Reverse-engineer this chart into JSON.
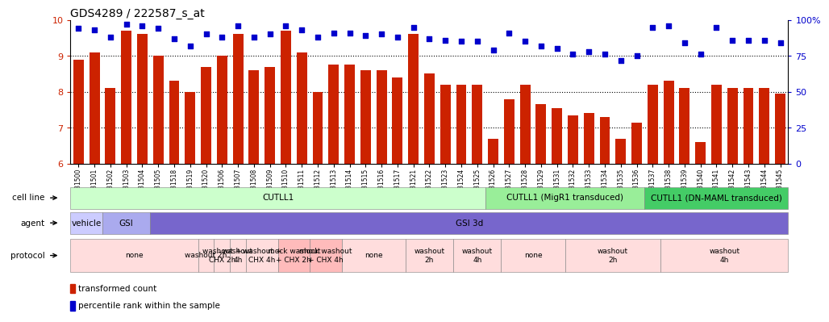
{
  "title": "GDS4289 / 222587_s_at",
  "samples": [
    "GSM731500",
    "GSM731501",
    "GSM731502",
    "GSM731503",
    "GSM731504",
    "GSM731505",
    "GSM731518",
    "GSM731519",
    "GSM731520",
    "GSM731506",
    "GSM731507",
    "GSM731508",
    "GSM731509",
    "GSM731510",
    "GSM731511",
    "GSM731512",
    "GSM731513",
    "GSM731514",
    "GSM731515",
    "GSM731516",
    "GSM731517",
    "GSM731521",
    "GSM731522",
    "GSM731523",
    "GSM731524",
    "GSM731525",
    "GSM731526",
    "GSM731527",
    "GSM731528",
    "GSM731529",
    "GSM731531",
    "GSM731532",
    "GSM731533",
    "GSM731534",
    "GSM731535",
    "GSM731536",
    "GSM731537",
    "GSM731538",
    "GSM731539",
    "GSM731540",
    "GSM731541",
    "GSM731542",
    "GSM731543",
    "GSM731544",
    "GSM731545"
  ],
  "bar_values": [
    8.9,
    9.1,
    8.1,
    9.7,
    9.6,
    9.0,
    8.3,
    8.0,
    8.7,
    9.0,
    9.6,
    8.6,
    8.7,
    9.7,
    9.1,
    8.0,
    8.75,
    8.75,
    8.6,
    8.6,
    8.4,
    9.6,
    8.5,
    8.2,
    8.2,
    8.2,
    6.7,
    7.8,
    8.2,
    7.65,
    7.55,
    7.35,
    7.4,
    7.3,
    6.7,
    7.15,
    8.2,
    8.3,
    8.1,
    6.6,
    8.2,
    8.1,
    8.1,
    8.1,
    7.95
  ],
  "dot_values": [
    94,
    93,
    88,
    97,
    96,
    94,
    87,
    82,
    90,
    88,
    96,
    88,
    90,
    96,
    93,
    88,
    91,
    91,
    89,
    90,
    88,
    95,
    87,
    86,
    85,
    85,
    79,
    91,
    85,
    82,
    80,
    76,
    78,
    76,
    72,
    75,
    95,
    96,
    84,
    76,
    95,
    86,
    86,
    86,
    84
  ],
  "bar_color": "#cc2200",
  "dot_color": "#0000cc",
  "ylim_left": [
    6,
    10
  ],
  "ylim_right": [
    0,
    100
  ],
  "yticks_left": [
    6,
    7,
    8,
    9,
    10
  ],
  "yticks_right": [
    0,
    25,
    50,
    75,
    100
  ],
  "ylabel_left_color": "#cc2200",
  "ylabel_right_color": "#0000cc",
  "cell_line_groups": [
    {
      "label": "CUTLL1",
      "start": 0,
      "end": 26,
      "color": "#ccffcc"
    },
    {
      "label": "CUTLL1 (MigR1 transduced)",
      "start": 26,
      "end": 36,
      "color": "#99ee99"
    },
    {
      "label": "CUTLL1 (DN-MAML transduced)",
      "start": 36,
      "end": 45,
      "color": "#44cc66"
    }
  ],
  "agent_groups": [
    {
      "label": "vehicle",
      "start": 0,
      "end": 2,
      "color": "#ccccff"
    },
    {
      "label": "GSI",
      "start": 2,
      "end": 5,
      "color": "#aaaaee"
    },
    {
      "label": "GSI 3d",
      "start": 5,
      "end": 45,
      "color": "#7766cc"
    }
  ],
  "protocol_groups": [
    {
      "label": "none",
      "start": 0,
      "end": 8,
      "color": "#ffdddd"
    },
    {
      "label": "washout 2h",
      "start": 8,
      "end": 9,
      "color": "#ffdddd"
    },
    {
      "label": "washout +\nCHX 2h",
      "start": 9,
      "end": 10,
      "color": "#ffdddd"
    },
    {
      "label": "washout\n4h",
      "start": 10,
      "end": 11,
      "color": "#ffdddd"
    },
    {
      "label": "washout +\nCHX 4h",
      "start": 11,
      "end": 13,
      "color": "#ffdddd"
    },
    {
      "label": "mock washout\n+ CHX 2h",
      "start": 13,
      "end": 15,
      "color": "#ffbbbb"
    },
    {
      "label": "mock washout\n+ CHX 4h",
      "start": 15,
      "end": 17,
      "color": "#ffbbbb"
    },
    {
      "label": "none",
      "start": 17,
      "end": 21,
      "color": "#ffdddd"
    },
    {
      "label": "washout\n2h",
      "start": 21,
      "end": 24,
      "color": "#ffdddd"
    },
    {
      "label": "washout\n4h",
      "start": 24,
      "end": 27,
      "color": "#ffdddd"
    },
    {
      "label": "none",
      "start": 27,
      "end": 31,
      "color": "#ffdddd"
    },
    {
      "label": "washout\n2h",
      "start": 31,
      "end": 37,
      "color": "#ffdddd"
    },
    {
      "label": "washout\n4h",
      "start": 37,
      "end": 45,
      "color": "#ffdddd"
    }
  ],
  "row_labels": [
    "cell line",
    "agent",
    "protocol"
  ],
  "legend_items": [
    {
      "label": "transformed count",
      "color": "#cc2200"
    },
    {
      "label": "percentile rank within the sample",
      "color": "#0000cc"
    }
  ]
}
